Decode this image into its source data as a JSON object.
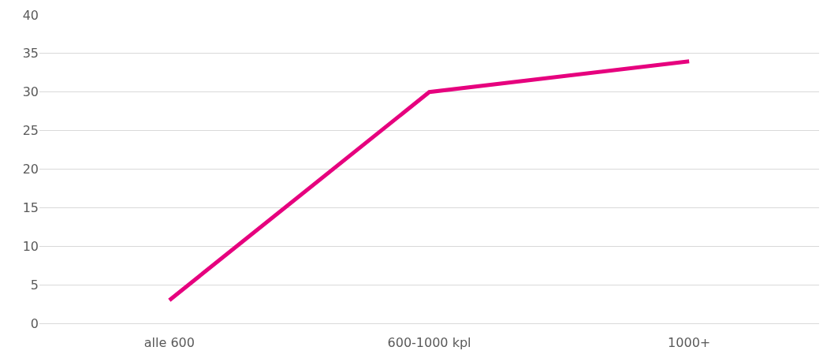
{
  "chart_data": {
    "type": "line",
    "categories": [
      "alle 600",
      "600-1000 kpl",
      "1000+"
    ],
    "series": [
      {
        "color": "#e6007e",
        "values": [
          3,
          30,
          34
        ]
      }
    ],
    "ylim": [
      0,
      40
    ],
    "yticks": [
      0,
      5,
      10,
      15,
      20,
      25,
      30,
      35,
      40
    ],
    "grid": "y",
    "marker": "none",
    "line_style": "solid"
  }
}
